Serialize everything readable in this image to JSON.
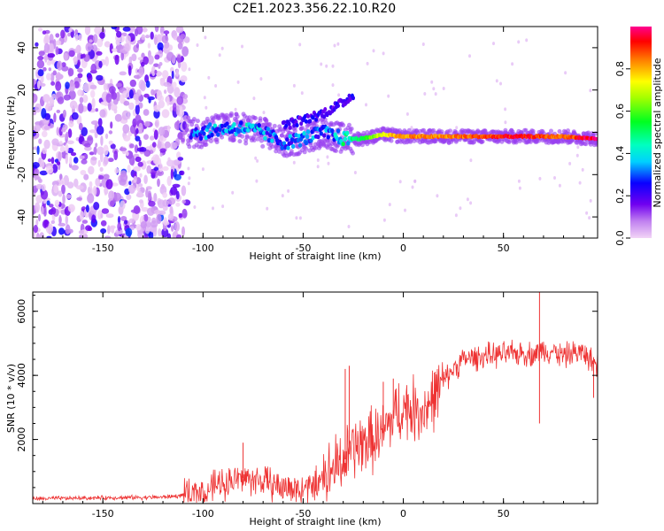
{
  "title": "C2E1.2023.356.22.10.R20",
  "chart_data": [
    {
      "type": "heatmap",
      "xlabel": "Height of straight line (km)",
      "ylabel": "Frequency (Hz)",
      "xlim": [
        -185,
        97
      ],
      "ylim": [
        -50,
        50
      ],
      "xticks": [
        -150,
        -100,
        -50,
        0,
        50
      ],
      "yticks": [
        -40,
        -20,
        0,
        20,
        40
      ],
      "grid": false,
      "colorbar": {
        "label": "Normalized spectral amplitude",
        "range": [
          0,
          1
        ],
        "ticks": [
          0.0,
          0.2,
          0.4,
          0.6,
          0.8
        ]
      },
      "regions": [
        {
          "x_range": [
            -185,
            -108
          ],
          "freq_range": [
            -50,
            50
          ],
          "level": 0.15,
          "pattern": "noise"
        },
        {
          "x_range": [
            -108,
            -25
          ],
          "freq_center": [
            2,
            0
          ],
          "level": 0.3,
          "pattern": "scattered"
        },
        {
          "x_range": [
            -25,
            97
          ],
          "freq_center": -2,
          "level": 0.9,
          "pattern": "line"
        }
      ],
      "ridge": {
        "x": [
          -105,
          -100,
          -90,
          -80,
          -70,
          -60,
          -50,
          -40,
          -30,
          -20,
          -10,
          0,
          20,
          40,
          60,
          80,
          95
        ],
        "freq": [
          0,
          0,
          2,
          2,
          0,
          -5,
          -3,
          0,
          -3,
          -3,
          -1,
          -2,
          -2,
          -2,
          -2,
          -2,
          -3
        ],
        "amplitude": [
          0.3,
          0.35,
          0.35,
          0.4,
          0.35,
          0.3,
          0.35,
          0.3,
          0.45,
          0.55,
          0.75,
          0.85,
          0.85,
          0.9,
          0.95,
          0.85,
          1.0
        ]
      },
      "upper_branch": {
        "x": [
          -60,
          -50,
          -40,
          -30,
          -25
        ],
        "freq": [
          3,
          6,
          9,
          14,
          18
        ]
      }
    },
    {
      "type": "line",
      "xlabel": "Height of straight line (km)",
      "ylabel": "SNR (10 * v/v)",
      "xlim": [
        -185,
        97
      ],
      "ylim": [
        0,
        6600
      ],
      "xticks": [
        -150,
        -100,
        -50,
        0,
        50
      ],
      "yticks": [
        2000,
        4000,
        6000
      ],
      "grid": false,
      "series": [
        {
          "color": "#ee3333",
          "x": [
            -185,
            -150,
            -120,
            -110,
            -100,
            -90,
            -80,
            -70,
            -60,
            -50,
            -40,
            -35,
            -30,
            -25,
            -20,
            -15,
            -10,
            -5,
            0,
            5,
            10,
            15,
            20,
            25,
            30,
            40,
            50,
            60,
            65,
            70,
            75,
            80,
            85,
            90,
            95
          ],
          "values": [
            150,
            180,
            200,
            250,
            400,
            650,
            800,
            700,
            500,
            450,
            700,
            1100,
            1300,
            1700,
            1900,
            2000,
            2200,
            2700,
            3000,
            2950,
            2900,
            3300,
            3800,
            4200,
            4500,
            4600,
            4650,
            4700,
            4650,
            4800,
            4750,
            4600,
            4700,
            4700,
            4400
          ],
          "spikes": [
            {
              "x": 68,
              "value": 6600
            },
            {
              "x": 68,
              "value": 2500
            },
            {
              "x": -29,
              "value": 4200
            },
            {
              "x": -27,
              "value": 4300
            },
            {
              "x": -10,
              "value": 3800
            },
            {
              "x": -5,
              "value": 3900
            },
            {
              "x": -80,
              "value": 1900
            },
            {
              "x": 95,
              "value": 3300
            }
          ]
        }
      ]
    }
  ]
}
